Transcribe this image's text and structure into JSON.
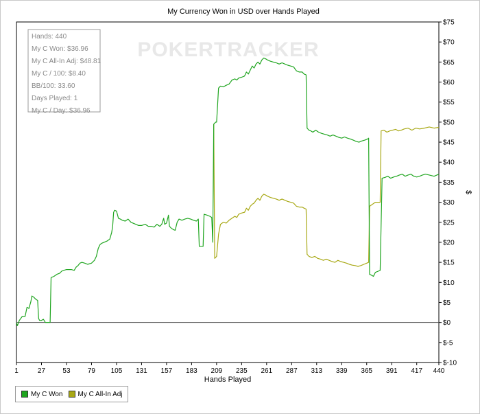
{
  "chart_data": {
    "type": "line",
    "title": "My Currency Won in USD over Hands Played",
    "xlabel": "Hands Played",
    "ylabel": "$",
    "xlim": [
      1,
      440
    ],
    "ylim": [
      -10,
      75
    ],
    "x_ticks": [
      1,
      27,
      53,
      79,
      105,
      131,
      157,
      183,
      209,
      235,
      261,
      287,
      313,
      339,
      365,
      391,
      417,
      440
    ],
    "y_ticks": [
      {
        "value": 75,
        "label": "$75"
      },
      {
        "value": 70,
        "label": "$70"
      },
      {
        "value": 65,
        "label": "$65"
      },
      {
        "value": 60,
        "label": "$60"
      },
      {
        "value": 55,
        "label": "$55"
      },
      {
        "value": 50,
        "label": "$50"
      },
      {
        "value": 45,
        "label": "$45"
      },
      {
        "value": 40,
        "label": "$40"
      },
      {
        "value": 35,
        "label": "$35"
      },
      {
        "value": 30,
        "label": "$30"
      },
      {
        "value": 25,
        "label": "$25"
      },
      {
        "value": 20,
        "label": "$20"
      },
      {
        "value": 15,
        "label": "$15"
      },
      {
        "value": 10,
        "label": "$10"
      },
      {
        "value": 5,
        "label": "$5"
      },
      {
        "value": 0,
        "label": "$0"
      },
      {
        "value": -5,
        "label": "$-5"
      },
      {
        "value": -10,
        "label": "$-10"
      }
    ],
    "grid": false,
    "legend_position": "bottom-left",
    "watermark": "POKERTRACKER",
    "series": [
      {
        "name": "My C Won",
        "color": "#1fa51f",
        "points": [
          [
            1,
            0
          ],
          [
            2,
            -0.8
          ],
          [
            4,
            0.5
          ],
          [
            7,
            1.5
          ],
          [
            10,
            1.5
          ],
          [
            12,
            3.8
          ],
          [
            14,
            3.5
          ],
          [
            16,
            5.2
          ],
          [
            17,
            6.6
          ],
          [
            19,
            6.3
          ],
          [
            21,
            5.8
          ],
          [
            23,
            5.5
          ],
          [
            24,
            1.0
          ],
          [
            25,
            0.5
          ],
          [
            27,
            0.5
          ],
          [
            29,
            0.8
          ],
          [
            31,
            0
          ],
          [
            36,
            0
          ],
          [
            37,
            11.2
          ],
          [
            40,
            11.5
          ],
          [
            43,
            12.0
          ],
          [
            46,
            12.3
          ],
          [
            48,
            12.8
          ],
          [
            50,
            13.0
          ],
          [
            53,
            13.2
          ],
          [
            58,
            13.2
          ],
          [
            61,
            13.0
          ],
          [
            63,
            13.8
          ],
          [
            65,
            14.2
          ],
          [
            67,
            14.8
          ],
          [
            69,
            15.0
          ],
          [
            72,
            14.8
          ],
          [
            75,
            14.5
          ],
          [
            79,
            14.8
          ],
          [
            82,
            15.5
          ],
          [
            84,
            16.5
          ],
          [
            86,
            18.5
          ],
          [
            88,
            19.5
          ],
          [
            90,
            19.8
          ],
          [
            92,
            20.0
          ],
          [
            95,
            20.3
          ],
          [
            98,
            20.8
          ],
          [
            100,
            22.5
          ],
          [
            101,
            24.0
          ],
          [
            102,
            27.5
          ],
          [
            103,
            28.0
          ],
          [
            105,
            27.8
          ],
          [
            107,
            26.0
          ],
          [
            109,
            25.8
          ],
          [
            111,
            25.5
          ],
          [
            114,
            25.3
          ],
          [
            117,
            25.8
          ],
          [
            120,
            25.0
          ],
          [
            122,
            24.8
          ],
          [
            125,
            24.5
          ],
          [
            128,
            24.2
          ],
          [
            131,
            24.2
          ],
          [
            135,
            24.5
          ],
          [
            138,
            24.0
          ],
          [
            141,
            24.0
          ],
          [
            144,
            23.8
          ],
          [
            147,
            24.5
          ],
          [
            150,
            24.0
          ],
          [
            152,
            24.5
          ],
          [
            154,
            26.0
          ],
          [
            155,
            24.5
          ],
          [
            157,
            24.8
          ],
          [
            159,
            26.8
          ],
          [
            160,
            24.0
          ],
          [
            162,
            23.5
          ],
          [
            164,
            23.2
          ],
          [
            166,
            23.0
          ],
          [
            168,
            25.0
          ],
          [
            170,
            25.8
          ],
          [
            173,
            25.5
          ],
          [
            176,
            25.8
          ],
          [
            179,
            26.0
          ],
          [
            182,
            25.8
          ],
          [
            185,
            25.5
          ],
          [
            188,
            25.3
          ],
          [
            190,
            25.8
          ],
          [
            191,
            19.0
          ],
          [
            193,
            19.0
          ],
          [
            195,
            19.0
          ],
          [
            196,
            27.0
          ],
          [
            199,
            26.8
          ],
          [
            202,
            26.5
          ],
          [
            204,
            26.2
          ],
          [
            205,
            20.0
          ],
          [
            206,
            49.5
          ],
          [
            208,
            50.0
          ],
          [
            209,
            50.0
          ],
          [
            211,
            58.5
          ],
          [
            213,
            59.0
          ],
          [
            216,
            58.8
          ],
          [
            219,
            59.2
          ],
          [
            222,
            59.5
          ],
          [
            225,
            60.5
          ],
          [
            228,
            60.8
          ],
          [
            230,
            60.5
          ],
          [
            232,
            61.0
          ],
          [
            235,
            61.2
          ],
          [
            238,
            61.5
          ],
          [
            240,
            62.5
          ],
          [
            242,
            62.0
          ],
          [
            244,
            63.0
          ],
          [
            246,
            64.0
          ],
          [
            248,
            63.5
          ],
          [
            250,
            64.5
          ],
          [
            252,
            65.0
          ],
          [
            254,
            64.5
          ],
          [
            256,
            65.5
          ],
          [
            258,
            66.0
          ],
          [
            260,
            65.8
          ],
          [
            262,
            65.5
          ],
          [
            265,
            65.2
          ],
          [
            268,
            65.0
          ],
          [
            271,
            64.8
          ],
          [
            274,
            64.5
          ],
          [
            277,
            64.8
          ],
          [
            280,
            64.5
          ],
          [
            283,
            64.2
          ],
          [
            286,
            64.0
          ],
          [
            289,
            63.8
          ],
          [
            292,
            62.8
          ],
          [
            295,
            62.5
          ],
          [
            298,
            62.5
          ],
          [
            300,
            62.0
          ],
          [
            302,
            61.8
          ],
          [
            303,
            48.5
          ],
          [
            305,
            48.0
          ],
          [
            307,
            47.8
          ],
          [
            309,
            47.5
          ],
          [
            312,
            48.0
          ],
          [
            315,
            47.5
          ],
          [
            318,
            47.2
          ],
          [
            321,
            47.0
          ],
          [
            324,
            46.8
          ],
          [
            327,
            46.5
          ],
          [
            330,
            46.8
          ],
          [
            333,
            46.5
          ],
          [
            336,
            46.2
          ],
          [
            339,
            46.0
          ],
          [
            342,
            46.3
          ],
          [
            345,
            46.0
          ],
          [
            348,
            45.8
          ],
          [
            351,
            45.5
          ],
          [
            354,
            45.2
          ],
          [
            357,
            45.0
          ],
          [
            360,
            45.3
          ],
          [
            363,
            45.5
          ],
          [
            366,
            45.8
          ],
          [
            367,
            46.0
          ],
          [
            368,
            12.0
          ],
          [
            370,
            11.8
          ],
          [
            372,
            11.5
          ],
          [
            374,
            12.5
          ],
          [
            377,
            12.8
          ],
          [
            379,
            13.0
          ],
          [
            381,
            36.0
          ],
          [
            384,
            36.2
          ],
          [
            387,
            36.5
          ],
          [
            390,
            36.0
          ],
          [
            393,
            36.3
          ],
          [
            396,
            36.5
          ],
          [
            399,
            36.8
          ],
          [
            402,
            37.0
          ],
          [
            405,
            36.5
          ],
          [
            408,
            36.8
          ],
          [
            411,
            37.0
          ],
          [
            414,
            36.5
          ],
          [
            417,
            36.3
          ],
          [
            420,
            36.5
          ],
          [
            423,
            36.8
          ],
          [
            426,
            37.0
          ],
          [
            430,
            36.8
          ],
          [
            435,
            36.5
          ],
          [
            440,
            37.0
          ]
        ]
      },
      {
        "name": "My C All-In Adj",
        "color": "#a8a814",
        "points": [
          [
            206,
            49.5
          ],
          [
            207,
            16.0
          ],
          [
            209,
            16.5
          ],
          [
            211,
            22.0
          ],
          [
            213,
            24.5
          ],
          [
            216,
            25.0
          ],
          [
            219,
            24.8
          ],
          [
            222,
            25.5
          ],
          [
            225,
            26.0
          ],
          [
            228,
            26.5
          ],
          [
            230,
            26.2
          ],
          [
            232,
            27.0
          ],
          [
            235,
            27.3
          ],
          [
            238,
            27.5
          ],
          [
            240,
            28.5
          ],
          [
            242,
            28.0
          ],
          [
            244,
            29.0
          ],
          [
            246,
            29.5
          ],
          [
            248,
            29.8
          ],
          [
            250,
            30.5
          ],
          [
            252,
            31.0
          ],
          [
            254,
            30.5
          ],
          [
            256,
            31.5
          ],
          [
            258,
            32.0
          ],
          [
            260,
            31.8
          ],
          [
            262,
            31.5
          ],
          [
            265,
            31.2
          ],
          [
            268,
            31.0
          ],
          [
            271,
            30.8
          ],
          [
            274,
            30.5
          ],
          [
            277,
            30.8
          ],
          [
            280,
            30.5
          ],
          [
            283,
            30.2
          ],
          [
            286,
            30.0
          ],
          [
            289,
            29.8
          ],
          [
            292,
            29.0
          ],
          [
            295,
            28.8
          ],
          [
            298,
            28.8
          ],
          [
            300,
            28.5
          ],
          [
            302,
            28.3
          ],
          [
            303,
            17.0
          ],
          [
            305,
            16.5
          ],
          [
            308,
            16.2
          ],
          [
            311,
            16.5
          ],
          [
            314,
            16.0
          ],
          [
            317,
            15.8
          ],
          [
            320,
            15.5
          ],
          [
            323,
            15.8
          ],
          [
            326,
            15.5
          ],
          [
            329,
            15.2
          ],
          [
            332,
            15.0
          ],
          [
            335,
            15.5
          ],
          [
            338,
            15.2
          ],
          [
            341,
            15.0
          ],
          [
            344,
            14.8
          ],
          [
            347,
            14.5
          ],
          [
            350,
            14.3
          ],
          [
            353,
            14.2
          ],
          [
            356,
            14.0
          ],
          [
            359,
            14.2
          ],
          [
            362,
            14.5
          ],
          [
            365,
            14.8
          ],
          [
            367,
            15.0
          ],
          [
            368,
            29.0
          ],
          [
            371,
            29.5
          ],
          [
            374,
            30.0
          ],
          [
            377,
            30.0
          ],
          [
            379,
            30.0
          ],
          [
            380,
            47.8
          ],
          [
            383,
            48.0
          ],
          [
            386,
            47.5
          ],
          [
            389,
            47.8
          ],
          [
            392,
            48.0
          ],
          [
            395,
            48.2
          ],
          [
            398,
            47.8
          ],
          [
            401,
            48.0
          ],
          [
            404,
            48.3
          ],
          [
            408,
            48.5
          ],
          [
            412,
            48.0
          ],
          [
            416,
            48.5
          ],
          [
            420,
            48.3
          ],
          [
            425,
            48.5
          ],
          [
            430,
            48.8
          ],
          [
            435,
            48.5
          ],
          [
            440,
            48.7
          ]
        ]
      }
    ],
    "stats_box": [
      "Hands: 440",
      "My C Won: $36.96",
      "My C All-In Adj: $48.81",
      "My C / 100: $8.40",
      "BB/100: 33.60",
      "Days Played: 1",
      "My C / Day: $36.96"
    ]
  }
}
